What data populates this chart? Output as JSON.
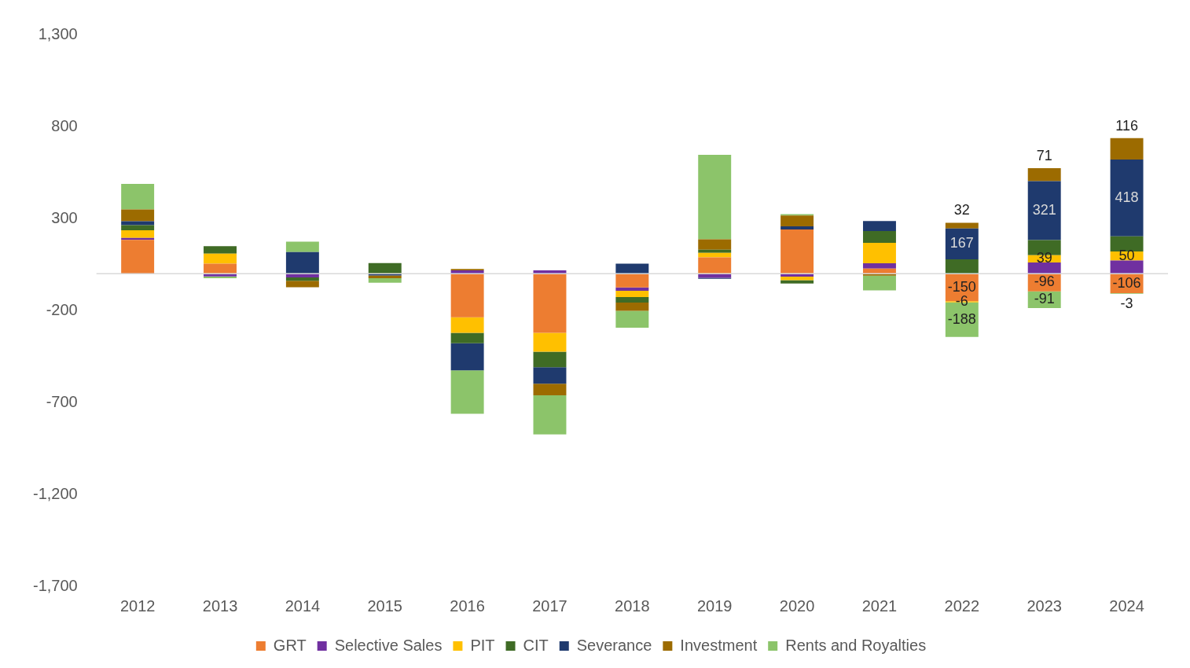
{
  "chart_data": {
    "type": "bar",
    "stacked": true,
    "categories": [
      "2012",
      "2013",
      "2014",
      "2015",
      "2016",
      "2017",
      "2018",
      "2019",
      "2020",
      "2021",
      "2022",
      "2023",
      "2024"
    ],
    "series": [
      {
        "name": "GRT",
        "color": "#ed7d31",
        "values": [
          184,
          54,
          null,
          null,
          -237,
          -322,
          -75,
          88,
          240,
          28,
          -150,
          -96,
          -106
        ],
        "value_labels": [
          null,
          null,
          null,
          null,
          null,
          null,
          null,
          null,
          null,
          null,
          "-150",
          "-96",
          "-106"
        ]
      },
      {
        "name": "Selective Sales",
        "color": "#7030a0",
        "values": [
          10,
          -15,
          -21,
          null,
          18,
          18,
          -18,
          -23,
          -16,
          28,
          null,
          61,
          71
        ]
      },
      {
        "name": "PIT",
        "color": "#ffc000",
        "values": [
          42,
          55,
          null,
          null,
          -85,
          -102,
          -34,
          25,
          -20,
          112,
          -6,
          39,
          50
        ],
        "value_labels": [
          null,
          null,
          null,
          null,
          null,
          null,
          null,
          null,
          null,
          null,
          "-6",
          "39",
          "50"
        ]
      },
      {
        "name": "CIT",
        "color": "#3f6b25",
        "values": [
          28,
          40,
          -18,
          57,
          -56,
          -85,
          -30,
          17,
          -18,
          64,
          78,
          82,
          82
        ]
      },
      {
        "name": "Severance",
        "color": "#1f3a6e",
        "values": [
          21,
          null,
          117,
          -10,
          -148,
          -89,
          54,
          -5,
          17,
          54,
          167,
          321,
          418
        ],
        "value_labels": [
          null,
          null,
          null,
          null,
          null,
          null,
          null,
          null,
          null,
          null,
          "167",
          "321",
          "418"
        ]
      },
      {
        "name": "Investment",
        "color": "#9c6b00",
        "values": [
          64,
          null,
          -35,
          -15,
          7,
          -64,
          -45,
          57,
          59,
          -11,
          32,
          71,
          116
        ],
        "value_labels": [
          null,
          null,
          null,
          null,
          null,
          null,
          null,
          null,
          null,
          null,
          "32",
          "71",
          "116"
        ]
      },
      {
        "name": "Rents and Royalties",
        "color": "#8cc46a",
        "values": [
          139,
          -10,
          57,
          -24,
          -236,
          -212,
          -92,
          459,
          7,
          -80,
          -188,
          -91,
          -3
        ],
        "value_labels": [
          null,
          null,
          null,
          null,
          null,
          null,
          null,
          null,
          null,
          null,
          "-188",
          "-91",
          "-3"
        ]
      }
    ],
    "ylim": [
      -1700,
      1300
    ],
    "yticks": [
      {
        "value": 1300,
        "label": "1,300"
      },
      {
        "value": 800,
        "label": "800"
      },
      {
        "value": 300,
        "label": "300"
      },
      {
        "value": -200,
        "label": "-200"
      },
      {
        "value": -700,
        "label": "-700"
      },
      {
        "value": -1200,
        "label": "-1,200"
      },
      {
        "value": -1700,
        "label": "-1,700"
      }
    ],
    "grid": false,
    "legend": "bottom"
  }
}
